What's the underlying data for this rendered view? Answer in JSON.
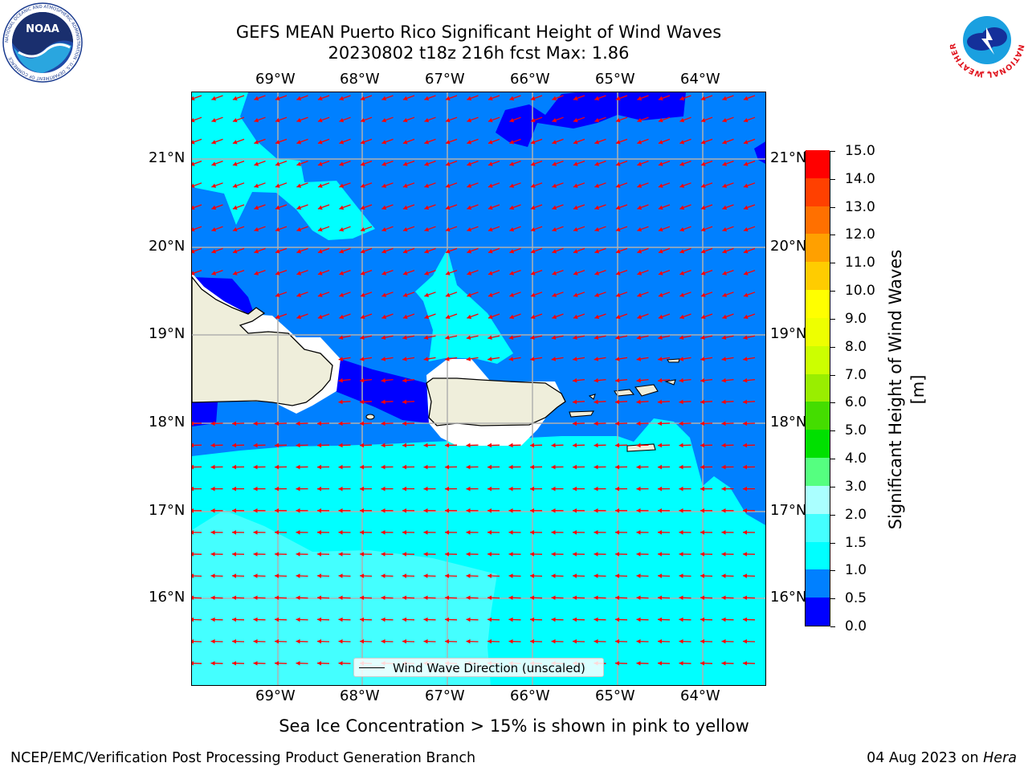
{
  "title": {
    "line1": "GEFS MEAN Puerto Rico Significant Height of Wind Waves",
    "line2": "20230802 t18z 216h fcst   Max: 1.86"
  },
  "lon_labels": [
    "69°W",
    "68°W",
    "67°W",
    "66°W",
    "65°W",
    "64°W"
  ],
  "lat_labels": [
    "21°N",
    "20°N",
    "19°N",
    "18°N",
    "17°N",
    "16°N"
  ],
  "legend": {
    "label": "Wind Wave Direction (unscaled)"
  },
  "colorbar": {
    "label": "Significant Height of Wind Waves [m]",
    "ticks": [
      "0.0",
      "0.5",
      "1.0",
      "1.5",
      "2.0",
      "3.0",
      "4.0",
      "5.0",
      "6.0",
      "7.0",
      "8.0",
      "9.0",
      "10.0",
      "11.0",
      "12.0",
      "13.0",
      "14.0",
      "15.0"
    ],
    "colors": [
      "#0000ff",
      "#0080ff",
      "#00ffff",
      "#44ffff",
      "#aaffff",
      "#55ff80",
      "#00e000",
      "#44dd00",
      "#99ee00",
      "#ccff00",
      "#eeff00",
      "#ffff00",
      "#ffcc00",
      "#ffa000",
      "#ff7000",
      "#ff4000",
      "#ff0000"
    ]
  },
  "field_colors": {
    "lt05": "#0000ff",
    "c05_10": "#0080ff",
    "c10_15": "#00ffff",
    "c15_20": "#44ffff",
    "land": "#efeedb",
    "grid": "#b0b0b0",
    "arrows": "#ff0000"
  },
  "note": "Sea Ice Concentration > 15% is shown in pink to yellow",
  "footer": {
    "left": "NCEP/EMC/Verification Post Processing Product Generation Branch",
    "date": "04 Aug 2023 on",
    "machine": "Hera"
  },
  "logos": {
    "noaa_text": "NOAA",
    "noaa_ring": "NATIONAL OCEANIC AND ATMOSPHERIC ADMINISTRATION · U.S. DEPARTMENT OF COMMERCE",
    "nws_ring": "NATIONAL WEATHER SERVICE"
  }
}
